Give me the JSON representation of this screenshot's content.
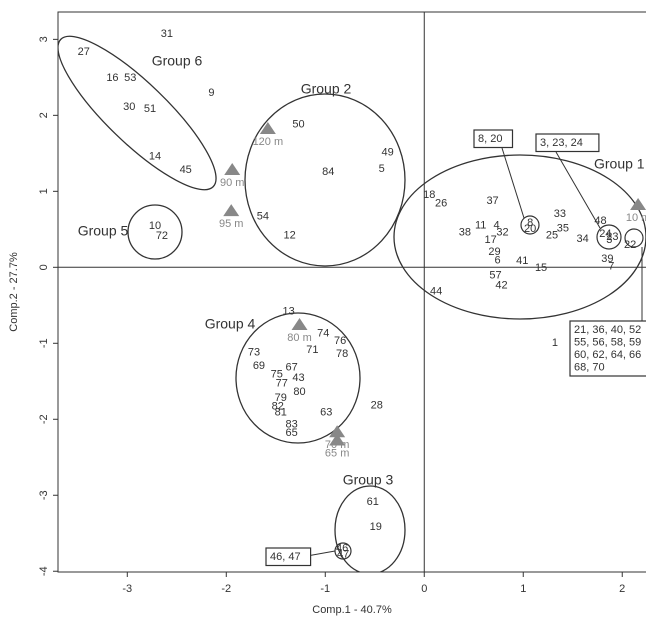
{
  "chart_data": {
    "type": "scatter",
    "xlabel": "Comp.1 - 40.7%",
    "ylabel": "Comp.2 - 27.7%",
    "xlim": [
      -3.7,
      2.24
    ],
    "ylim": [
      -4.01,
      3.36
    ],
    "xticks": [
      -3,
      -2,
      -1,
      0,
      1,
      2
    ],
    "yticks": [
      3,
      2,
      1,
      0,
      -1,
      -2,
      -3,
      -4
    ],
    "zero_lines": true,
    "series": [
      {
        "name": "Sites",
        "color": "#333333",
        "labels": [
          "31",
          "27",
          "16",
          "53",
          "30",
          "51",
          "9",
          "14",
          "45",
          "50",
          "49",
          "84",
          "5",
          "54",
          "12",
          "10",
          "72",
          "18",
          "26",
          "37",
          "33",
          "48",
          "38",
          "11",
          "4",
          "32",
          "17",
          "35",
          "25",
          "34",
          "29",
          "6",
          "41",
          "15",
          "39",
          "7",
          "57",
          "42",
          "44",
          "1",
          "13",
          "74",
          "76",
          "71",
          "78",
          "73",
          "69",
          "67",
          "75",
          "43",
          "77",
          "80",
          "79",
          "82",
          "81",
          "63",
          "28",
          "83",
          "65",
          "61",
          "19",
          "8",
          "20",
          "24",
          "3",
          "23",
          "22",
          "46",
          "47"
        ],
        "x": [
          -2.6,
          -3.44,
          -3.15,
          -2.97,
          -2.98,
          -2.77,
          -2.15,
          -2.72,
          -2.41,
          -1.27,
          -0.37,
          -0.97,
          -0.43,
          -1.63,
          -1.36,
          -2.72,
          -2.65,
          0.05,
          0.17,
          0.69,
          1.37,
          1.78,
          0.41,
          0.57,
          0.73,
          0.79,
          0.67,
          1.4,
          1.29,
          1.6,
          0.71,
          0.74,
          0.99,
          1.18,
          1.85,
          1.89,
          0.72,
          0.78,
          0.12,
          1.32,
          -1.37,
          -1.02,
          -0.85,
          -1.13,
          -0.83,
          -1.72,
          -1.67,
          -1.34,
          -1.49,
          -1.27,
          -1.44,
          -1.26,
          -1.45,
          -1.48,
          -1.45,
          -0.99,
          -0.48,
          -1.34,
          -1.34,
          -0.52,
          -0.49,
          1.07,
          1.07,
          1.83,
          1.87,
          1.9,
          2.08,
          -0.83,
          -0.82
        ],
        "y": [
          3.07,
          2.83,
          2.49,
          2.49,
          2.11,
          2.08,
          2.29,
          1.46,
          1.28,
          1.88,
          1.51,
          1.25,
          1.29,
          0.67,
          0.42,
          0.54,
          0.41,
          0.95,
          0.84,
          0.87,
          0.7,
          0.61,
          0.46,
          0.55,
          0.55,
          0.46,
          0.36,
          0.51,
          0.42,
          0.37,
          0.2,
          0.09,
          0.08,
          -0.01,
          0.11,
          0.01,
          -0.11,
          -0.24,
          -0.32,
          -1.0,
          -0.58,
          -0.87,
          -0.97,
          -1.09,
          -1.14,
          -1.12,
          -1.3,
          -1.32,
          -1.41,
          -1.46,
          -1.53,
          -1.64,
          -1.72,
          -1.83,
          -1.91,
          -1.91,
          -1.82,
          -2.07,
          -2.18,
          -3.09,
          -3.42,
          0.58,
          0.5,
          0.44,
          0.36,
          0.4,
          0.29,
          -3.7,
          -3.78
        ]
      },
      {
        "name": "Depth",
        "color": "#888888",
        "labels": [
          "120 m",
          "90 m",
          "95 m",
          "10 m",
          "80 m",
          "70 m",
          "65 m"
        ],
        "x": [
          -1.58,
          -1.94,
          -1.95,
          2.16,
          -1.26,
          -0.88,
          -0.88
        ],
        "y": [
          1.82,
          1.28,
          0.74,
          0.82,
          -0.76,
          -2.17,
          -2.28
        ]
      }
    ],
    "groups": [
      "Group 1",
      "Group 2",
      "Group 3",
      "Group 4",
      "Group 5",
      "Group 6"
    ],
    "callouts": [
      [
        "8, 20"
      ],
      [
        "3, 23, 24"
      ],
      [
        "21, 36, 40, 52",
        "55, 56, 58, 59",
        "60, 62, 64, 66",
        "68, 70"
      ],
      [
        "46, 47"
      ]
    ]
  }
}
